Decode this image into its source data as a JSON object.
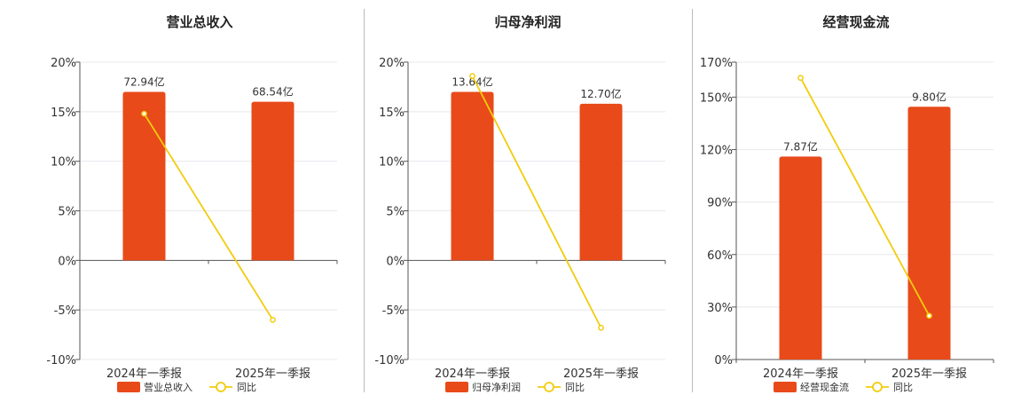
{
  "colors": {
    "bar": "#E84A1A",
    "line": "#F2CC0C",
    "grid": "#e8e8ee",
    "axis": "#555555"
  },
  "legend": {
    "line_label": "同比"
  },
  "chart_data": [
    {
      "type": "bar",
      "title": "营业总收入",
      "categories": [
        "2024年一季报",
        "2025年一季报"
      ],
      "bar_series": {
        "name": "营业总收入",
        "values": [
          17.0,
          16.0
        ],
        "labels": [
          "72.94亿",
          "68.54亿"
        ]
      },
      "line_series": {
        "name": "同比",
        "values": [
          14.8,
          -6.0
        ]
      },
      "y_ticks": [
        20,
        15,
        10,
        5,
        0,
        -5,
        -10
      ],
      "y_tick_labels": [
        "20%",
        "15%",
        "10%",
        "5%",
        "0%",
        "-5%",
        "-10%"
      ],
      "ylim": [
        -10,
        20
      ],
      "grid": true,
      "legend_position": "bottom"
    },
    {
      "type": "bar",
      "title": "归母净利润",
      "categories": [
        "2024年一季报",
        "2025年一季报"
      ],
      "bar_series": {
        "name": "归母净利润",
        "values": [
          17.0,
          15.8
        ],
        "labels": [
          "13.64亿",
          "12.70亿"
        ]
      },
      "line_series": {
        "name": "同比",
        "values": [
          18.6,
          -6.8
        ]
      },
      "y_ticks": [
        20,
        15,
        10,
        5,
        0,
        -5,
        -10
      ],
      "y_tick_labels": [
        "20%",
        "15%",
        "10%",
        "5%",
        "0%",
        "-5%",
        "-10%"
      ],
      "ylim": [
        -10,
        20
      ],
      "grid": true,
      "legend_position": "bottom"
    },
    {
      "type": "bar",
      "title": "经营现金流",
      "categories": [
        "2024年一季报",
        "2025年一季报"
      ],
      "bar_series": {
        "name": "经营现金流",
        "values": [
          116,
          144.5
        ],
        "labels": [
          "7.87亿",
          "9.80亿"
        ]
      },
      "line_series": {
        "name": "同比",
        "values": [
          161,
          25
        ]
      },
      "y_ticks": [
        170,
        150,
        120,
        90,
        60,
        30,
        0
      ],
      "y_tick_labels": [
        "170%",
        "150%",
        "120%",
        "90%",
        "60%",
        "30%",
        "0%"
      ],
      "ylim": [
        0,
        170
      ],
      "grid": true,
      "legend_position": "bottom"
    }
  ]
}
